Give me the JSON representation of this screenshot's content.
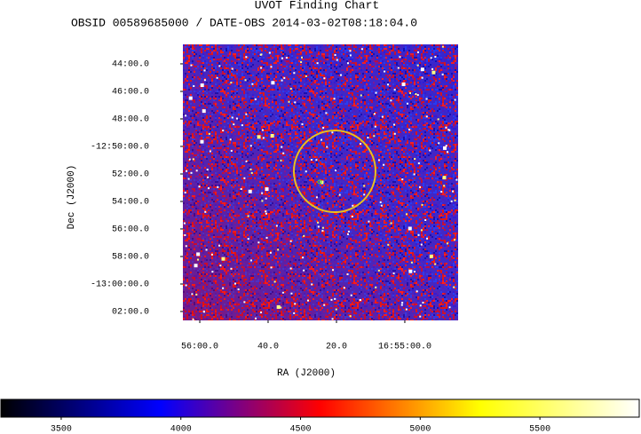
{
  "chart_data": {
    "type": "image",
    "title": "UVOT Finding Chart",
    "subtitle": "OBSID 00589685000 / DATE-OBS 2014-03-02T08:18:04.0",
    "xlabel": "RA (J2000)",
    "ylabel": "Dec (J2000)",
    "xlim": [
      254.0206,
      253.685
    ],
    "ylim": [
      -13.0441,
      -12.7097
    ],
    "xticks": [
      {
        "value": 254.0,
        "label": "56:00.0"
      },
      {
        "value": 253.9167,
        "label": "40.0"
      },
      {
        "value": 253.8333,
        "label": "20.0"
      },
      {
        "value": 253.75,
        "label": "16:55:00.0"
      }
    ],
    "yticks": [
      {
        "value": -12.7333,
        "label": "44:00.0"
      },
      {
        "value": -12.7667,
        "label": "46:00.0"
      },
      {
        "value": -12.8,
        "label": "48:00.0"
      },
      {
        "value": -12.8333,
        "label": "-12:50:00.0"
      },
      {
        "value": -12.8667,
        "label": "52:00.0"
      },
      {
        "value": -12.9,
        "label": "54:00.0"
      },
      {
        "value": -12.9333,
        "label": "56:00.0"
      },
      {
        "value": -12.9667,
        "label": "58:00.0"
      },
      {
        "value": -13.0,
        "label": "-13:00:00.0"
      },
      {
        "value": -13.0333,
        "label": "02:00.0"
      }
    ],
    "colorbar": {
      "lim": [
        3248,
        5915
      ],
      "ticks": [
        3500,
        4000,
        4500,
        5000,
        5500
      ],
      "colormap": [
        "#000000",
        "#0000ff",
        "#ff0000",
        "#ffff00",
        "#ffffff"
      ]
    }
  }
}
